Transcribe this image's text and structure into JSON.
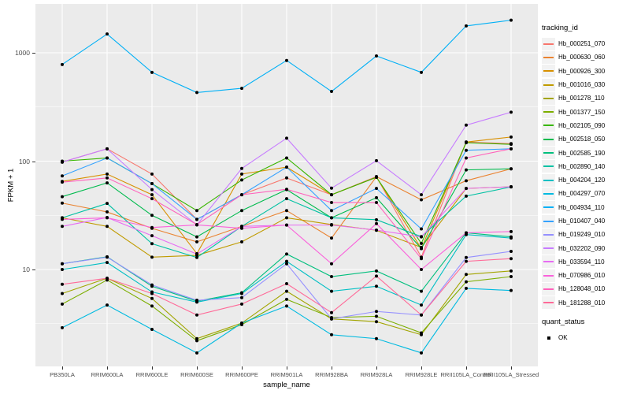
{
  "figure": {
    "ylabel": "FPKM + 1",
    "xlabel": "sample_name",
    "panel_bg": "#EBEBEB",
    "grid_color": "#FFFFFF",
    "tick_text_color": "#4D4D4D",
    "point_color": "#000000",
    "legend_key_bg": "#F2F2F2"
  },
  "chart_data": {
    "type": "line",
    "title": "",
    "xlabel": "sample_name",
    "ylabel": "FPKM + 1",
    "yscale": "log10",
    "ylim": [
      1.3,
      2800
    ],
    "yticks": [
      10,
      100,
      1000
    ],
    "yminor": [
      3.162,
      31.62,
      316.2
    ],
    "grid": "white major+minor on gray panel",
    "legend_position": "right",
    "legend_title": "tracking_id",
    "marker": "black point on every value",
    "categories": [
      "PB350LA",
      "RRIM600LA",
      "RRIM600LE",
      "RRIM600SE",
      "RRIM600PE",
      "RRIM901LA",
      "RRIM928BA",
      "RRIM928LA",
      "RRIM928LE",
      "RRII105LA_Control",
      "RRII105LA_Stressed"
    ],
    "series": [
      {
        "name": "Hb_000251_070",
        "color": "#F8766D",
        "values": [
          98,
          130,
          76,
          29,
          49,
          70,
          49,
          72,
          13,
          150,
          145
        ]
      },
      {
        "name": "Hb_000630_060",
        "color": "#EA8331",
        "values": [
          41,
          34,
          24,
          18,
          25,
          35,
          19.5,
          72,
          44,
          66,
          85
        ]
      },
      {
        "name": "Hb_000926_300",
        "color": "#D89000",
        "values": [
          65,
          76,
          49,
          14,
          76,
          88,
          49,
          71,
          15.6,
          150,
          167
        ]
      },
      {
        "name": "Hb_001016_030",
        "color": "#C09B00",
        "values": [
          30,
          25,
          13,
          13.5,
          18,
          30,
          26,
          23,
          16,
          56,
          58
        ]
      },
      {
        "name": "Hb_001278_110",
        "color": "#A3A500",
        "values": [
          6,
          8.3,
          5.4,
          2.3,
          3.2,
          6.3,
          3.5,
          3.3,
          2.5,
          9,
          9.7
        ]
      },
      {
        "name": "Hb_001377_150",
        "color": "#7CAE00",
        "values": [
          4.8,
          8,
          4.6,
          2.2,
          3.1,
          5.3,
          3.6,
          3.7,
          2.6,
          7.7,
          8.6
        ]
      },
      {
        "name": "Hb_002105_090",
        "color": "#39B600",
        "values": [
          100,
          107,
          62,
          35,
          67,
          107,
          49,
          71,
          17.4,
          148,
          143
        ]
      },
      {
        "name": "Hb_002518_050",
        "color": "#00BB4E",
        "values": [
          47,
          63,
          31.6,
          20,
          35,
          54.6,
          30,
          46,
          15.6,
          83,
          85
        ]
      },
      {
        "name": "Hb_002585_190",
        "color": "#00BF7D",
        "values": [
          11.3,
          13.1,
          7,
          5.1,
          6.1,
          13.9,
          8.6,
          9.7,
          6.3,
          21.8,
          20
        ]
      },
      {
        "name": "Hb_002890_140",
        "color": "#00C1A3",
        "values": [
          30,
          40.7,
          17.3,
          12.9,
          25,
          45,
          30,
          28.8,
          20.1,
          47.6,
          57.8
        ]
      },
      {
        "name": "Hb_004204_120",
        "color": "#00BFC4",
        "values": [
          10,
          11.6,
          6.2,
          5,
          6,
          11.9,
          6.3,
          7,
          4.7,
          21,
          19.5
        ]
      },
      {
        "name": "Hb_004297_070",
        "color": "#00BAE0",
        "values": [
          2.9,
          4.7,
          2.8,
          1.7,
          3.2,
          4.6,
          2.5,
          2.3,
          1.7,
          6.7,
          6.4
        ]
      },
      {
        "name": "Hb_004934_110",
        "color": "#00B0F6",
        "values": [
          780,
          1490,
          660,
          430,
          470,
          850,
          440,
          935,
          660,
          1770,
          2000
        ]
      },
      {
        "name": "Hb_010407_040",
        "color": "#35A2FF",
        "values": [
          73,
          107,
          62,
          29,
          49,
          88,
          35,
          56,
          23.7,
          126,
          130
        ]
      },
      {
        "name": "Hb_019249_010",
        "color": "#9590FF",
        "values": [
          11.3,
          13,
          7.2,
          5.2,
          5.5,
          11.3,
          3.5,
          4.1,
          3.8,
          12.9,
          14.7
        ]
      },
      {
        "name": "Hb_032202_090",
        "color": "#C77CFF",
        "values": [
          98,
          130,
          54.6,
          25.8,
          85.6,
          163,
          56.3,
          101,
          49,
          215,
          283
        ]
      },
      {
        "name": "Hb_033594_110",
        "color": "#E76BF3",
        "values": [
          25,
          30.2,
          20.5,
          13.9,
          25,
          25.7,
          25.7,
          23.1,
          20,
          56,
          58
        ]
      },
      {
        "name": "Hb_070986_010",
        "color": "#FA62DB",
        "values": [
          29,
          30,
          24.4,
          25.8,
          24,
          25.7,
          11.3,
          26.5,
          10,
          21.8,
          22.4
        ]
      },
      {
        "name": "Hb_128048_010",
        "color": "#FF62BC",
        "values": [
          64,
          70,
          45,
          26,
          49,
          55,
          41.5,
          41.5,
          12.6,
          107,
          130
        ]
      },
      {
        "name": "Hb_181288_010",
        "color": "#FF6A98",
        "values": [
          7.3,
          8.3,
          6,
          3.8,
          4.8,
          7.4,
          4,
          8.7,
          3.8,
          11.9,
          12.6
        ]
      }
    ],
    "quant_status": {
      "title": "quant_status",
      "entries": [
        "OK"
      ]
    }
  }
}
